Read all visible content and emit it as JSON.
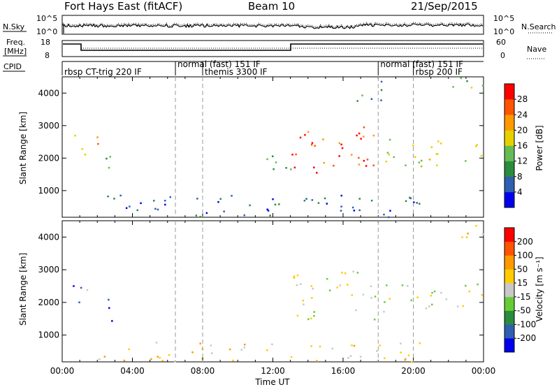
{
  "header": {
    "radar": "Fort Hays East (fitACF)",
    "beam": "Beam 10",
    "date": "21/Sep/2015"
  },
  "top_panels": {
    "nsky_label": "N.Sky",
    "nsky_ticks": [
      "10^5",
      "10^0"
    ],
    "nsearch_label": "N.Search",
    "nsearch_ticks": [
      "10^5",
      "10^0"
    ],
    "freq_label_1": "Freq.",
    "freq_label_2": "[MHz]",
    "freq_ticks": [
      "18",
      "8"
    ],
    "nave_label": "Nave",
    "nave_ticks": [
      "60",
      "0"
    ],
    "cpid_label": "CPID"
  },
  "cpid_segments": [
    {
      "label": "rbsp CT-trig 220 IF",
      "start": 0,
      "row": 1
    },
    {
      "label": "normal (fast) 151 IF",
      "start": 6.45,
      "row": 0
    },
    {
      "label": "themis 3300 IF",
      "start": 8.0,
      "row": 1
    },
    {
      "label": "normal (fast) 151 IF",
      "start": 18.0,
      "row": 0
    },
    {
      "label": "rbsp 200 IF",
      "start": 20.0,
      "row": 1
    }
  ],
  "chart_data": [
    {
      "type": "heatmap",
      "panel": "power",
      "xlabel": "",
      "ylabel": "Slant Range [km]",
      "xlim": [
        0,
        24
      ],
      "ylim": [
        180,
        4500
      ],
      "yticks": [
        "1000",
        "2000",
        "3000",
        "4000"
      ],
      "colorbar_label": "Power [dB]",
      "colorbar_ticks": [
        "4",
        "8",
        "12",
        "16",
        "20",
        "24",
        "28"
      ],
      "colorbar_colors": [
        "#0000ee",
        "#2f5fb0",
        "#2a8c3c",
        "#66bb55",
        "#e6d000",
        "#ff9900",
        "#ff5500",
        "#ff0000"
      ],
      "scatter_regions": [
        {
          "t0": 0.25,
          "t1": 1.3,
          "r0": 2000,
          "r1": 2800,
          "level": 3
        },
        {
          "t0": 1.0,
          "t1": 2.0,
          "r0": 2100,
          "r1": 2700,
          "level": 5
        },
        {
          "t0": 2.0,
          "t1": 3.1,
          "r0": 1450,
          "r1": 2200,
          "level": 3
        },
        {
          "t0": 11.5,
          "t1": 13.0,
          "r0": 1400,
          "r1": 2400,
          "level": 2
        },
        {
          "t0": 12.9,
          "t1": 18.0,
          "r0": 1500,
          "r1": 3000,
          "level": 6
        },
        {
          "t0": 18.0,
          "t1": 24.0,
          "r0": 1700,
          "r1": 2600,
          "level": 4
        },
        {
          "t0": 16.5,
          "t1": 18.5,
          "r0": 3600,
          "r1": 4400,
          "level": 2
        },
        {
          "t0": 22.0,
          "t1": 24.0,
          "r0": 3900,
          "r1": 4500,
          "level": 3
        },
        {
          "t0": 2.0,
          "t1": 20.5,
          "r0": 200,
          "r1": 900,
          "level": 1
        }
      ]
    },
    {
      "type": "heatmap",
      "panel": "velocity",
      "xlabel": "Time UT",
      "ylabel": "Slant Range [km]",
      "xlim": [
        0,
        24
      ],
      "ylim": [
        180,
        4500
      ],
      "xticks": [
        "00:00",
        "04:00",
        "08:00",
        "12:00",
        "16:00",
        "20:00",
        "00:00"
      ],
      "yticks": [
        "1000",
        "2000",
        "3000",
        "4000"
      ],
      "colorbar_label": "Velocity [m s⁻¹]",
      "colorbar_ticks": [
        "200",
        "100",
        "50",
        "15",
        "-15",
        "-50",
        "-100",
        "-200"
      ],
      "colorbar_colors": [
        "#0000ee",
        "#2f5fb0",
        "#2a8c3c",
        "#66cc33",
        "#c8c8c8",
        "#ffcc00",
        "#ff9900",
        "#ff5500",
        "#ff0000"
      ],
      "scatter_regions": [
        {
          "t0": 0.25,
          "t1": 1.3,
          "r0": 2000,
          "r1": 2800,
          "level": 0
        },
        {
          "t0": 1.0,
          "t1": 2.0,
          "r0": 2300,
          "r1": 2600,
          "level": 4
        },
        {
          "t0": 2.0,
          "t1": 3.1,
          "r0": 1450,
          "r1": 2200,
          "level": 0
        },
        {
          "t0": 12.9,
          "t1": 18.0,
          "r0": 1500,
          "r1": 3000,
          "level": 4
        },
        {
          "t0": 18.0,
          "t1": 24.0,
          "r0": 1700,
          "r1": 2600,
          "level": 4
        },
        {
          "t0": 22.0,
          "t1": 24.0,
          "r0": 3900,
          "r1": 4500,
          "level": 5
        },
        {
          "t0": 2.0,
          "t1": 20.5,
          "r0": 200,
          "r1": 800,
          "level": 5
        }
      ]
    }
  ]
}
